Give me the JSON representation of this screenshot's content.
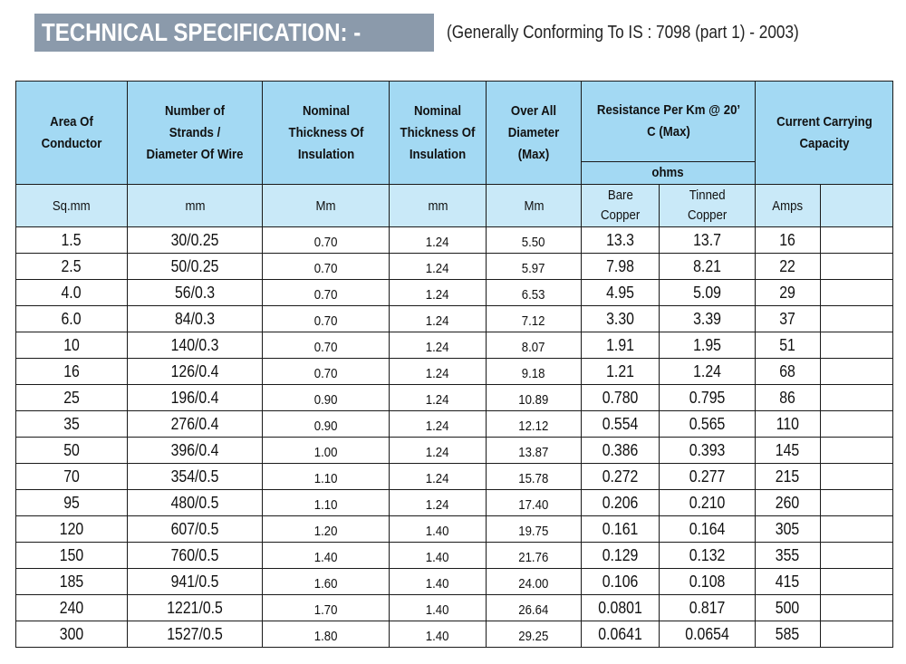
{
  "title": "TECHNICAL SPECIFICATION: -",
  "subtitle": "(Generally Conforming To IS : 7098 (part 1) - 2003)",
  "headers": {
    "area": "Area Of Conductor",
    "strands": "Number of Strands / Diameter Of Wire",
    "nominal1": "Nominal Thickness Of Insulation",
    "nominal2": "Nominal Thickness Of Insulation",
    "diameter": "Over All Diameter (Max)",
    "resistance": "Resistance Per Km @ 20’ C (Max)",
    "resistance_unit": "ohms",
    "current": "Current Carrying Capacity"
  },
  "units": {
    "area": "Sq.mm",
    "strands": "mm",
    "nominal1": "Mm",
    "nominal2": "mm",
    "diameter": "Mm",
    "bare_1": "Bare",
    "bare_2": "Copper",
    "tinned_1": "Tinned",
    "tinned_2": "Copper",
    "current": "Amps"
  },
  "rows": [
    {
      "area": "1.5",
      "strands": "30/0.25",
      "nom1": "0.70",
      "nom2": "1.24",
      "dia": "5.50",
      "bare": "13.3",
      "tinned": "13.7",
      "amps": "16"
    },
    {
      "area": "2.5",
      "strands": "50/0.25",
      "nom1": "0.70",
      "nom2": "1.24",
      "dia": "5.97",
      "bare": "7.98",
      "tinned": "8.21",
      "amps": "22"
    },
    {
      "area": "4.0",
      "strands": "56/0.3",
      "nom1": "0.70",
      "nom2": "1.24",
      "dia": "6.53",
      "bare": "4.95",
      "tinned": "5.09",
      "amps": "29"
    },
    {
      "area": "6.0",
      "strands": "84/0.3",
      "nom1": "0.70",
      "nom2": "1.24",
      "dia": "7.12",
      "bare": "3.30",
      "tinned": "3.39",
      "amps": "37"
    },
    {
      "area": "10",
      "strands": "140/0.3",
      "nom1": "0.70",
      "nom2": "1.24",
      "dia": "8.07",
      "bare": "1.91",
      "tinned": "1.95",
      "amps": "51"
    },
    {
      "area": "16",
      "strands": "126/0.4",
      "nom1": "0.70",
      "nom2": "1.24",
      "dia": "9.18",
      "bare": "1.21",
      "tinned": "1.24",
      "amps": "68"
    },
    {
      "area": "25",
      "strands": "196/0.4",
      "nom1": "0.90",
      "nom2": "1.24",
      "dia": "10.89",
      "bare": "0.780",
      "tinned": "0.795",
      "amps": "86"
    },
    {
      "area": "35",
      "strands": "276/0.4",
      "nom1": "0.90",
      "nom2": "1.24",
      "dia": "12.12",
      "bare": "0.554",
      "tinned": "0.565",
      "amps": "110"
    },
    {
      "area": "50",
      "strands": "396/0.4",
      "nom1": "1.00",
      "nom2": "1.24",
      "dia": "13.87",
      "bare": "0.386",
      "tinned": "0.393",
      "amps": "145"
    },
    {
      "area": "70",
      "strands": "354/0.5",
      "nom1": "1.10",
      "nom2": "1.24",
      "dia": "15.78",
      "bare": "0.272",
      "tinned": "0.277",
      "amps": "215"
    },
    {
      "area": "95",
      "strands": "480/0.5",
      "nom1": "1.10",
      "nom2": "1.24",
      "dia": "17.40",
      "bare": "0.206",
      "tinned": "0.210",
      "amps": "260"
    },
    {
      "area": "120",
      "strands": "607/0.5",
      "nom1": "1.20",
      "nom2": "1.40",
      "dia": "19.75",
      "bare": "0.161",
      "tinned": "0.164",
      "amps": "305"
    },
    {
      "area": "150",
      "strands": "760/0.5",
      "nom1": "1.40",
      "nom2": "1.40",
      "dia": "21.76",
      "bare": "0.129",
      "tinned": "0.132",
      "amps": "355"
    },
    {
      "area": "185",
      "strands": "941/0.5",
      "nom1": "1.60",
      "nom2": "1.40",
      "dia": "24.00",
      "bare": "0.106",
      "tinned": "0.108",
      "amps": "415"
    },
    {
      "area": "240",
      "strands": "1221/0.5",
      "nom1": "1.70",
      "nom2": "1.40",
      "dia": "26.64",
      "bare": "0.0801",
      "tinned": "0.817",
      "amps": "500"
    },
    {
      "area": "300",
      "strands": "1527/0.5",
      "nom1": "1.80",
      "nom2": "1.40",
      "dia": "29.25",
      "bare": "0.0641",
      "tinned": "0.0654",
      "amps": "585"
    }
  ]
}
